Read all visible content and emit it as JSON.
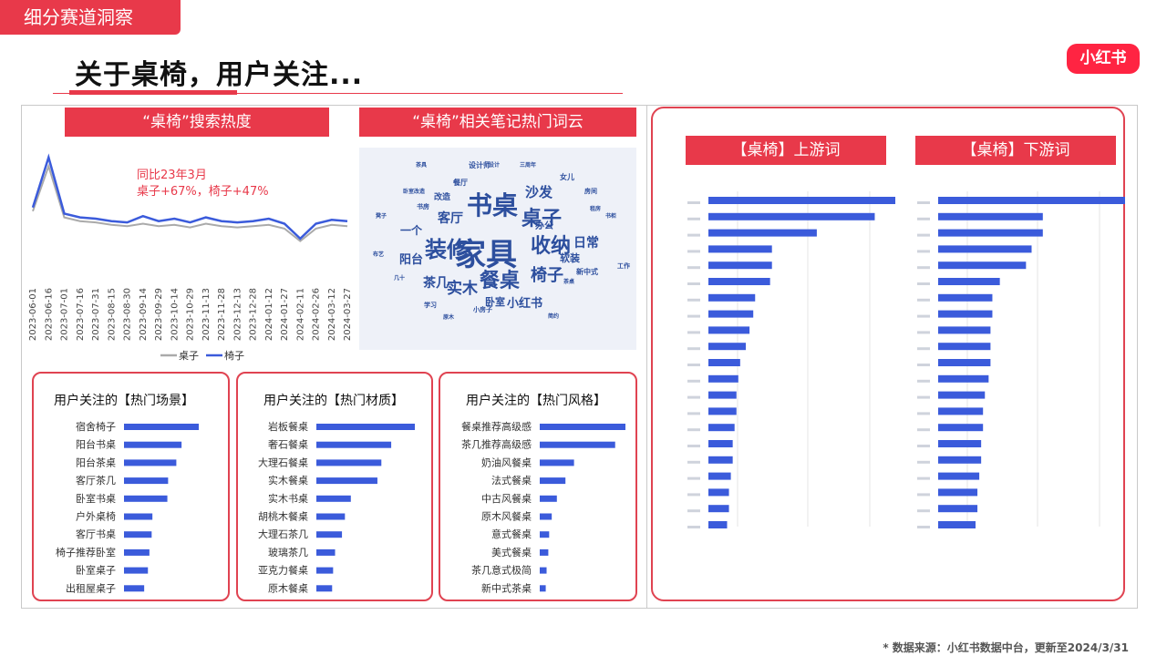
{
  "header": {
    "section_tag": "细分赛道洞察",
    "title": "关于桌椅，用户关注...",
    "logo": "小红书"
  },
  "colors": {
    "accent": "#e8394a",
    "bar": "#3b5bdb",
    "series_zhuozi": "#aaaaaa",
    "series_yizi": "#3b5bdb"
  },
  "labels": {
    "search_heat": "“桌椅”搜索热度",
    "wordcloud": "“桌椅”相关笔记热门词云",
    "upstream": "【桌椅】上游词",
    "downstream": "【桌椅】下游词"
  },
  "annotation": {
    "line1": "同比23年3月",
    "line2": "桌子+67%，椅子+47%"
  },
  "wordcloud": [
    {
      "t": "家具",
      "s": 34
    },
    {
      "t": "装修",
      "s": 24
    },
    {
      "t": "书桌",
      "s": 28
    },
    {
      "t": "桌子",
      "s": 22
    },
    {
      "t": "收纳",
      "s": 22
    },
    {
      "t": "餐桌",
      "s": 22
    },
    {
      "t": "椅子",
      "s": 18
    },
    {
      "t": "实木",
      "s": 17
    },
    {
      "t": "沙发",
      "s": 15
    },
    {
      "t": "客厅",
      "s": 14
    },
    {
      "t": "日常",
      "s": 14
    },
    {
      "t": "茶几",
      "s": 14
    },
    {
      "t": "阳台",
      "s": 13
    },
    {
      "t": "一个",
      "s": 12
    },
    {
      "t": "小红书",
      "s": 13
    },
    {
      "t": "软装",
      "s": 11
    },
    {
      "t": "卧室",
      "s": 11
    },
    {
      "t": "办公",
      "s": 10
    },
    {
      "t": "改造",
      "s": 9
    },
    {
      "t": "餐厅",
      "s": 8
    },
    {
      "t": "设计师",
      "s": 8
    },
    {
      "t": "女儿",
      "s": 8
    },
    {
      "t": "新中式",
      "s": 8
    },
    {
      "t": "小房子",
      "s": 7
    },
    {
      "t": "书房",
      "s": 7
    },
    {
      "t": "房间",
      "s": 7
    },
    {
      "t": "学习",
      "s": 7
    },
    {
      "t": "卧室改造",
      "s": 6
    },
    {
      "t": "三周年",
      "s": 6
    },
    {
      "t": "茶桌",
      "s": 6
    },
    {
      "t": "工作",
      "s": 7
    },
    {
      "t": "设计",
      "s": 6
    },
    {
      "t": "凳子",
      "s": 6
    },
    {
      "t": "几十",
      "s": 6
    },
    {
      "t": "原木",
      "s": 6
    },
    {
      "t": "简约",
      "s": 6
    },
    {
      "t": "布艺",
      "s": 6
    },
    {
      "t": "租房",
      "s": 6
    },
    {
      "t": "茶具",
      "s": 6
    },
    {
      "t": "书柜",
      "s": 6
    }
  ],
  "panels": [
    {
      "title": "用户关注的【热门场景】",
      "items": [
        "宿舍椅子",
        "阳台书桌",
        "阳台茶桌",
        "客厅茶几",
        "卧室书桌",
        "户外桌椅",
        "客厅书桌",
        "椅子推荐卧室",
        "卧室桌子",
        "出租屋桌子"
      ],
      "values": [
        100,
        77,
        70,
        59,
        58,
        38,
        37,
        34,
        32,
        27
      ]
    },
    {
      "title": "用户关注的【热门材质】",
      "items": [
        "岩板餐桌",
        "奢石餐桌",
        "大理石餐桌",
        "实木餐桌",
        "实木书桌",
        "胡桃木餐桌",
        "大理石茶几",
        "玻璃茶几",
        "亚克力餐桌",
        "原木餐桌"
      ],
      "values": [
        100,
        76,
        66,
        62,
        35,
        29,
        26,
        19,
        17,
        16
      ]
    },
    {
      "title": "用户关注的【热门风格】",
      "items": [
        "餐桌推荐高级感",
        "茶几推荐高级感",
        "奶油风餐桌",
        "法式餐桌",
        "中古风餐桌",
        "原木风餐桌",
        "意式餐桌",
        "美式餐桌",
        "茶几意式极简",
        "新中式茶桌"
      ],
      "values": [
        100,
        88,
        40,
        30,
        20,
        14,
        11,
        10,
        8,
        7
      ]
    }
  ],
  "chart_data": [
    {
      "type": "line",
      "title": "“桌椅”搜索热度",
      "x": [
        "2023-06-01",
        "2023-06-16",
        "2023-07-01",
        "2023-07-16",
        "2023-07-31",
        "2023-08-15",
        "2023-08-30",
        "2023-09-14",
        "2023-09-29",
        "2023-10-14",
        "2023-10-29",
        "2023-11-13",
        "2023-11-28",
        "2023-12-13",
        "2023-12-28",
        "2024-01-12",
        "2024-01-27",
        "2024-02-11",
        "2024-02-26",
        "2024-03-12",
        "2024-03-27"
      ],
      "series": [
        {
          "name": "桌子",
          "values": [
            52,
            88,
            47,
            44,
            43,
            41,
            40,
            42,
            40,
            41,
            39,
            42,
            40,
            39,
            40,
            41,
            38,
            28,
            38,
            41,
            40
          ]
        },
        {
          "name": "椅子",
          "values": [
            55,
            95,
            50,
            47,
            46,
            44,
            43,
            48,
            44,
            46,
            43,
            47,
            44,
            43,
            44,
            46,
            42,
            30,
            42,
            45,
            44
          ]
        }
      ],
      "legend": "bottom",
      "grid": false
    },
    {
      "type": "bar",
      "title": "【桌椅】上游词",
      "orientation": "horizontal",
      "values": [
        100,
        89,
        58,
        34,
        34,
        33,
        25,
        24,
        22,
        20,
        17,
        16,
        15,
        15,
        14,
        13,
        13,
        12,
        11,
        11,
        10,
        10
      ]
    },
    {
      "type": "bar",
      "title": "【桌椅】下游词",
      "orientation": "horizontal",
      "values": [
        100,
        56,
        56,
        50,
        47,
        33,
        29,
        29,
        28,
        28,
        28,
        27,
        25,
        24,
        24,
        23,
        23,
        22,
        21,
        21,
        20,
        19
      ]
    }
  ],
  "source_note": "* 数据来源：小红书数据中台，更新至2024/3/31"
}
